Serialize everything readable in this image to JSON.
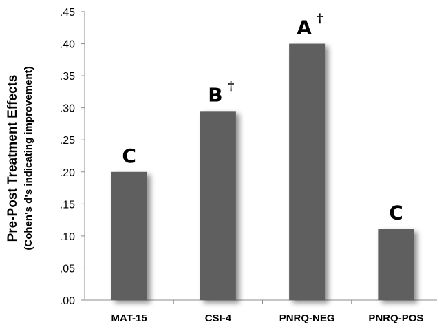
{
  "chart_data": {
    "type": "bar",
    "categories": [
      "MAT-15",
      "CSI-4",
      "PNRQ-NEG",
      "PNRQ-POS"
    ],
    "values": [
      0.2,
      0.295,
      0.4,
      0.111
    ],
    "annotations": [
      {
        "letter": "C",
        "mark": ""
      },
      {
        "letter": "B",
        "mark": "†"
      },
      {
        "letter": "A",
        "mark": "†"
      },
      {
        "letter": "C",
        "mark": ""
      }
    ],
    "ylabel": "Pre-Post Treatment Effects",
    "ylabel_sub": "(Cohen's d's indicating improvement)",
    "ylim": [
      0,
      0.45
    ],
    "yticks": [
      ".00",
      ".05",
      ".10",
      ".15",
      ".20",
      ".25",
      ".30",
      ".35",
      ".40",
      ".45"
    ],
    "bar_color": "#5f5f5f",
    "grid": false
  }
}
